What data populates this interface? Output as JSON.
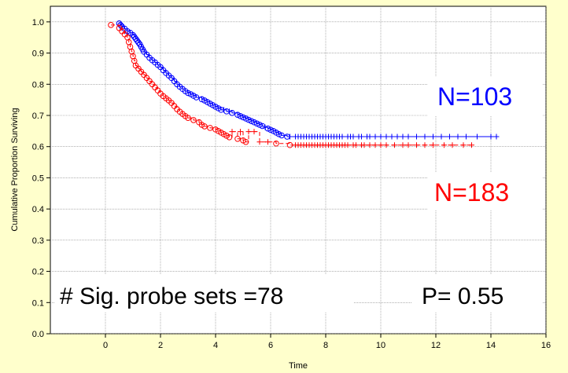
{
  "chart_data": {
    "type": "scatter",
    "title": "",
    "xlabel": "Time",
    "ylabel": "Cumulative Proportion Surviving",
    "xlim": [
      -2,
      16
    ],
    "ylim": [
      0.0,
      1.05
    ],
    "xticks": [
      "0",
      "2",
      "4",
      "6",
      "8",
      "10",
      "12",
      "14",
      "16"
    ],
    "yticks": [
      "0.0",
      "0.1",
      "0.2",
      "0.3",
      "0.4",
      "0.5",
      "0.6",
      "0.7",
      "0.8",
      "0.9",
      "1.0"
    ],
    "grid": true,
    "series": [
      {
        "name": "N=103",
        "color": "#0000ff",
        "events": [
          [
            0.5,
            0.995
          ],
          [
            0.55,
            0.99
          ],
          [
            0.6,
            0.985
          ],
          [
            0.7,
            0.978
          ],
          [
            0.8,
            0.97
          ],
          [
            0.9,
            0.965
          ],
          [
            1.0,
            0.958
          ],
          [
            1.05,
            0.952
          ],
          [
            1.1,
            0.946
          ],
          [
            1.15,
            0.94
          ],
          [
            1.2,
            0.934
          ],
          [
            1.25,
            0.928
          ],
          [
            1.3,
            0.92
          ],
          [
            1.35,
            0.912
          ],
          [
            1.4,
            0.904
          ],
          [
            1.5,
            0.895
          ],
          [
            1.6,
            0.885
          ],
          [
            1.7,
            0.877
          ],
          [
            1.8,
            0.87
          ],
          [
            1.9,
            0.862
          ],
          [
            2.0,
            0.855
          ],
          [
            2.1,
            0.845
          ],
          [
            2.2,
            0.836
          ],
          [
            2.3,
            0.828
          ],
          [
            2.4,
            0.82
          ],
          [
            2.5,
            0.81
          ],
          [
            2.6,
            0.8
          ],
          [
            2.7,
            0.792
          ],
          [
            2.8,
            0.785
          ],
          [
            2.9,
            0.778
          ],
          [
            3.0,
            0.772
          ],
          [
            3.1,
            0.768
          ],
          [
            3.2,
            0.763
          ],
          [
            3.3,
            0.758
          ],
          [
            3.5,
            0.752
          ],
          [
            3.6,
            0.748
          ],
          [
            3.7,
            0.743
          ],
          [
            3.8,
            0.738
          ],
          [
            3.9,
            0.733
          ],
          [
            4.0,
            0.728
          ],
          [
            4.1,
            0.723
          ],
          [
            4.2,
            0.718
          ],
          [
            4.4,
            0.713
          ],
          [
            4.6,
            0.708
          ],
          [
            4.8,
            0.702
          ],
          [
            4.9,
            0.698
          ],
          [
            5.0,
            0.694
          ],
          [
            5.1,
            0.69
          ],
          [
            5.2,
            0.686
          ],
          [
            5.3,
            0.682
          ],
          [
            5.4,
            0.678
          ],
          [
            5.5,
            0.674
          ],
          [
            5.6,
            0.67
          ],
          [
            5.7,
            0.666
          ],
          [
            5.9,
            0.658
          ],
          [
            6.0,
            0.654
          ],
          [
            6.1,
            0.65
          ],
          [
            6.2,
            0.645
          ],
          [
            6.3,
            0.64
          ],
          [
            6.4,
            0.636
          ],
          [
            6.6,
            0.632
          ]
        ],
        "censored": [
          [
            4.3,
            0.718
          ],
          [
            4.5,
            0.713
          ],
          [
            5.8,
            0.662
          ],
          [
            6.7,
            0.632
          ],
          [
            6.9,
            0.632
          ],
          [
            7.0,
            0.632
          ],
          [
            7.1,
            0.632
          ],
          [
            7.2,
            0.632
          ],
          [
            7.3,
            0.632
          ],
          [
            7.4,
            0.632
          ],
          [
            7.5,
            0.632
          ],
          [
            7.6,
            0.632
          ],
          [
            7.7,
            0.632
          ],
          [
            7.8,
            0.632
          ],
          [
            7.9,
            0.632
          ],
          [
            8.0,
            0.632
          ],
          [
            8.1,
            0.632
          ],
          [
            8.2,
            0.632
          ],
          [
            8.3,
            0.632
          ],
          [
            8.4,
            0.632
          ],
          [
            8.5,
            0.632
          ],
          [
            8.6,
            0.632
          ],
          [
            8.8,
            0.632
          ],
          [
            8.9,
            0.632
          ],
          [
            9.0,
            0.632
          ],
          [
            9.2,
            0.632
          ],
          [
            9.3,
            0.632
          ],
          [
            9.5,
            0.632
          ],
          [
            9.6,
            0.632
          ],
          [
            9.8,
            0.632
          ],
          [
            10.0,
            0.632
          ],
          [
            10.2,
            0.632
          ],
          [
            10.4,
            0.632
          ],
          [
            10.6,
            0.632
          ],
          [
            10.8,
            0.632
          ],
          [
            11.0,
            0.632
          ],
          [
            11.3,
            0.632
          ],
          [
            11.6,
            0.632
          ],
          [
            11.9,
            0.632
          ],
          [
            12.2,
            0.632
          ],
          [
            12.5,
            0.632
          ],
          [
            12.8,
            0.632
          ],
          [
            13.1,
            0.632
          ],
          [
            13.5,
            0.632
          ],
          [
            14.0,
            0.632
          ],
          [
            14.2,
            0.632
          ]
        ]
      },
      {
        "name": "N=183",
        "color": "#ff0000",
        "events": [
          [
            0.2,
            0.99
          ],
          [
            0.5,
            0.98
          ],
          [
            0.6,
            0.97
          ],
          [
            0.7,
            0.96
          ],
          [
            0.8,
            0.95
          ],
          [
            0.85,
            0.935
          ],
          [
            0.9,
            0.92
          ],
          [
            0.95,
            0.905
          ],
          [
            1.0,
            0.89
          ],
          [
            1.05,
            0.875
          ],
          [
            1.1,
            0.86
          ],
          [
            1.2,
            0.85
          ],
          [
            1.3,
            0.84
          ],
          [
            1.4,
            0.83
          ],
          [
            1.5,
            0.82
          ],
          [
            1.6,
            0.81
          ],
          [
            1.7,
            0.8
          ],
          [
            1.8,
            0.79
          ],
          [
            1.9,
            0.78
          ],
          [
            2.0,
            0.77
          ],
          [
            2.1,
            0.762
          ],
          [
            2.2,
            0.755
          ],
          [
            2.3,
            0.748
          ],
          [
            2.4,
            0.74
          ],
          [
            2.5,
            0.73
          ],
          [
            2.6,
            0.72
          ],
          [
            2.7,
            0.712
          ],
          [
            2.8,
            0.705
          ],
          [
            2.9,
            0.698
          ],
          [
            3.0,
            0.692
          ],
          [
            3.2,
            0.685
          ],
          [
            3.4,
            0.678
          ],
          [
            3.5,
            0.67
          ],
          [
            3.6,
            0.665
          ],
          [
            3.8,
            0.66
          ],
          [
            4.0,
            0.655
          ],
          [
            4.1,
            0.65
          ],
          [
            4.2,
            0.645
          ],
          [
            4.3,
            0.64
          ],
          [
            4.4,
            0.635
          ],
          [
            4.5,
            0.63
          ],
          [
            4.8,
            0.625
          ],
          [
            5.0,
            0.62
          ],
          [
            5.1,
            0.615
          ],
          [
            6.2,
            0.61
          ],
          [
            6.7,
            0.605
          ]
        ],
        "censored": [
          [
            4.6,
            0.648
          ],
          [
            4.9,
            0.648
          ],
          [
            5.2,
            0.648
          ],
          [
            5.4,
            0.648
          ],
          [
            5.6,
            0.615
          ],
          [
            5.9,
            0.615
          ],
          [
            6.9,
            0.605
          ],
          [
            7.0,
            0.605
          ],
          [
            7.1,
            0.605
          ],
          [
            7.2,
            0.605
          ],
          [
            7.3,
            0.605
          ],
          [
            7.4,
            0.605
          ],
          [
            7.5,
            0.605
          ],
          [
            7.6,
            0.605
          ],
          [
            7.7,
            0.605
          ],
          [
            7.8,
            0.605
          ],
          [
            7.9,
            0.605
          ],
          [
            8.0,
            0.605
          ],
          [
            8.1,
            0.605
          ],
          [
            8.2,
            0.605
          ],
          [
            8.3,
            0.605
          ],
          [
            8.4,
            0.605
          ],
          [
            8.5,
            0.605
          ],
          [
            8.6,
            0.605
          ],
          [
            8.7,
            0.605
          ],
          [
            8.8,
            0.605
          ],
          [
            9.0,
            0.605
          ],
          [
            9.1,
            0.605
          ],
          [
            9.3,
            0.605
          ],
          [
            9.4,
            0.605
          ],
          [
            9.6,
            0.605
          ],
          [
            9.8,
            0.605
          ],
          [
            10.0,
            0.605
          ],
          [
            10.2,
            0.605
          ],
          [
            10.5,
            0.605
          ],
          [
            10.8,
            0.605
          ],
          [
            11.0,
            0.605
          ],
          [
            11.3,
            0.605
          ],
          [
            11.6,
            0.605
          ],
          [
            11.9,
            0.605
          ],
          [
            12.3,
            0.605
          ],
          [
            12.6,
            0.605
          ],
          [
            13.0,
            0.605
          ],
          [
            13.3,
            0.605
          ]
        ]
      }
    ],
    "annotations": {
      "n_blue": "N=103",
      "n_red": "N=183",
      "sig_probe": "# Sig. probe sets =78",
      "p_value": "P= 0.55"
    }
  }
}
